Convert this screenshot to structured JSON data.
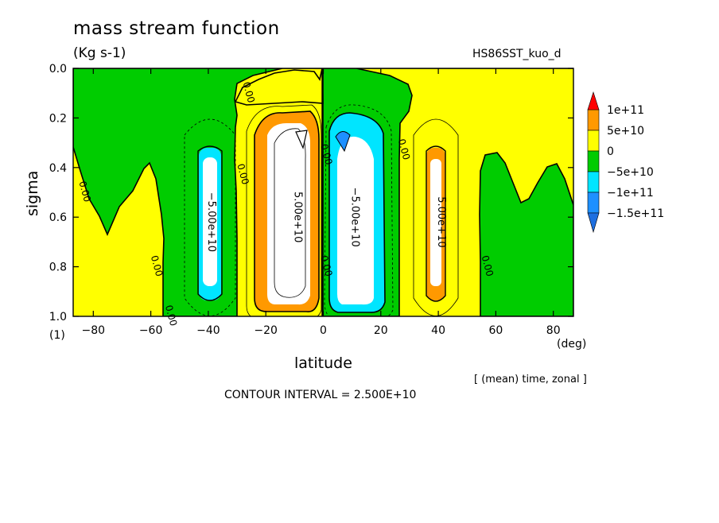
{
  "header": {
    "title": "mass stream function",
    "units": "(Kg s-1)",
    "run_name": "HS86SST_kuo_d"
  },
  "footer": {
    "note": "[ (mean) time, zonal ]",
    "interval": "CONTOUR INTERVAL = 2.500E+10"
  },
  "chart_data": {
    "type": "heatmap",
    "title": "mass stream function",
    "xlabel": "latitude",
    "x_unit": "(deg)",
    "ylabel": "sigma",
    "y_unit": "(1)",
    "xlim": [
      -87,
      87
    ],
    "ylim": [
      1.0,
      0.0
    ],
    "y_inverted": true,
    "x_ticks": [
      -80,
      -60,
      -40,
      -20,
      0,
      20,
      40,
      60,
      80
    ],
    "x_tick_labels": [
      "−80",
      "−60",
      "−40",
      "−20",
      "0",
      "20",
      "40",
      "60",
      "80"
    ],
    "y_ticks": [
      0.0,
      0.2,
      0.4,
      0.6,
      0.8,
      1.0
    ],
    "y_tick_labels": [
      "0.0",
      "0.2",
      "0.4",
      "0.6",
      "0.8",
      "1.0"
    ],
    "contour_interval": 25000000000.0,
    "colorbar": {
      "levels": [
        -150000000000.0,
        -100000000000.0,
        -50000000000.0,
        0,
        50000000000.0,
        100000000000.0
      ],
      "labels": [
        "1e+11",
        "5e+10",
        "0",
        "−5e+10",
        "−1e+11",
        "−1.5e+11"
      ],
      "bands": [
        {
          "range": [
            100000000000.0,
            150000000000.0
          ],
          "color": "#ffffff"
        },
        {
          "range": [
            50000000000.0,
            100000000000.0
          ],
          "color": "#ff9900"
        },
        {
          "range": [
            0,
            50000000000.0
          ],
          "color": "#ffff00"
        },
        {
          "range": [
            -50000000000.0,
            0
          ],
          "color": "#00cc00"
        },
        {
          "range": [
            -100000000000.0,
            -50000000000.0
          ],
          "color": "#00e5ff"
        },
        {
          "range": [
            -150000000000.0,
            -100000000000.0
          ],
          "color": "#1e90ff"
        },
        {
          "range": [
            -200000000000.0,
            -150000000000.0
          ],
          "color": "#ffffff"
        }
      ],
      "over_color": "#ff0000",
      "under_color": "#1e6fe0"
    },
    "cells": [
      {
        "name": "south-ferrel-cell",
        "sign": "negative",
        "center": [
          -40,
          0.62
        ],
        "extent_lat": [
          -45,
          -35
        ],
        "extent_sigma": [
          0.3,
          0.93
        ],
        "peak_label": "−5.00e+10"
      },
      {
        "name": "south-hadley-cell",
        "sign": "positive",
        "center": [
          -10,
          0.6
        ],
        "extent_lat": [
          -25,
          -1
        ],
        "extent_sigma": [
          0.2,
          0.97
        ],
        "peak_label": "5.00e+10"
      },
      {
        "name": "north-hadley-cell",
        "sign": "negative",
        "center": [
          10,
          0.6
        ],
        "extent_lat": [
          2,
          23
        ],
        "extent_sigma": [
          0.2,
          0.97
        ],
        "peak_label": "−5.00e+10"
      },
      {
        "name": "north-ferrel-cell",
        "sign": "positive",
        "center": [
          40,
          0.62
        ],
        "extent_lat": [
          36,
          44
        ],
        "extent_sigma": [
          0.33,
          0.93
        ],
        "peak_label": "5.00e+10"
      }
    ],
    "contour_labels": [
      {
        "text": "0.00",
        "lat": -84,
        "sigma": 0.5
      },
      {
        "text": "0.00",
        "lat": -59,
        "sigma": 0.8
      },
      {
        "text": "0.00",
        "lat": -54,
        "sigma": 1.0
      },
      {
        "text": "0.00",
        "lat": -29,
        "sigma": 0.43
      },
      {
        "text": "0.00",
        "lat": -27,
        "sigma": 0.1
      },
      {
        "text": "0.00",
        "lat": 0,
        "sigma": 0.35
      },
      {
        "text": "0.00",
        "lat": 0,
        "sigma": 0.8
      },
      {
        "text": "0.00",
        "lat": 27,
        "sigma": 0.33
      },
      {
        "text": "0.00",
        "lat": 56,
        "sigma": 0.8
      }
    ]
  }
}
